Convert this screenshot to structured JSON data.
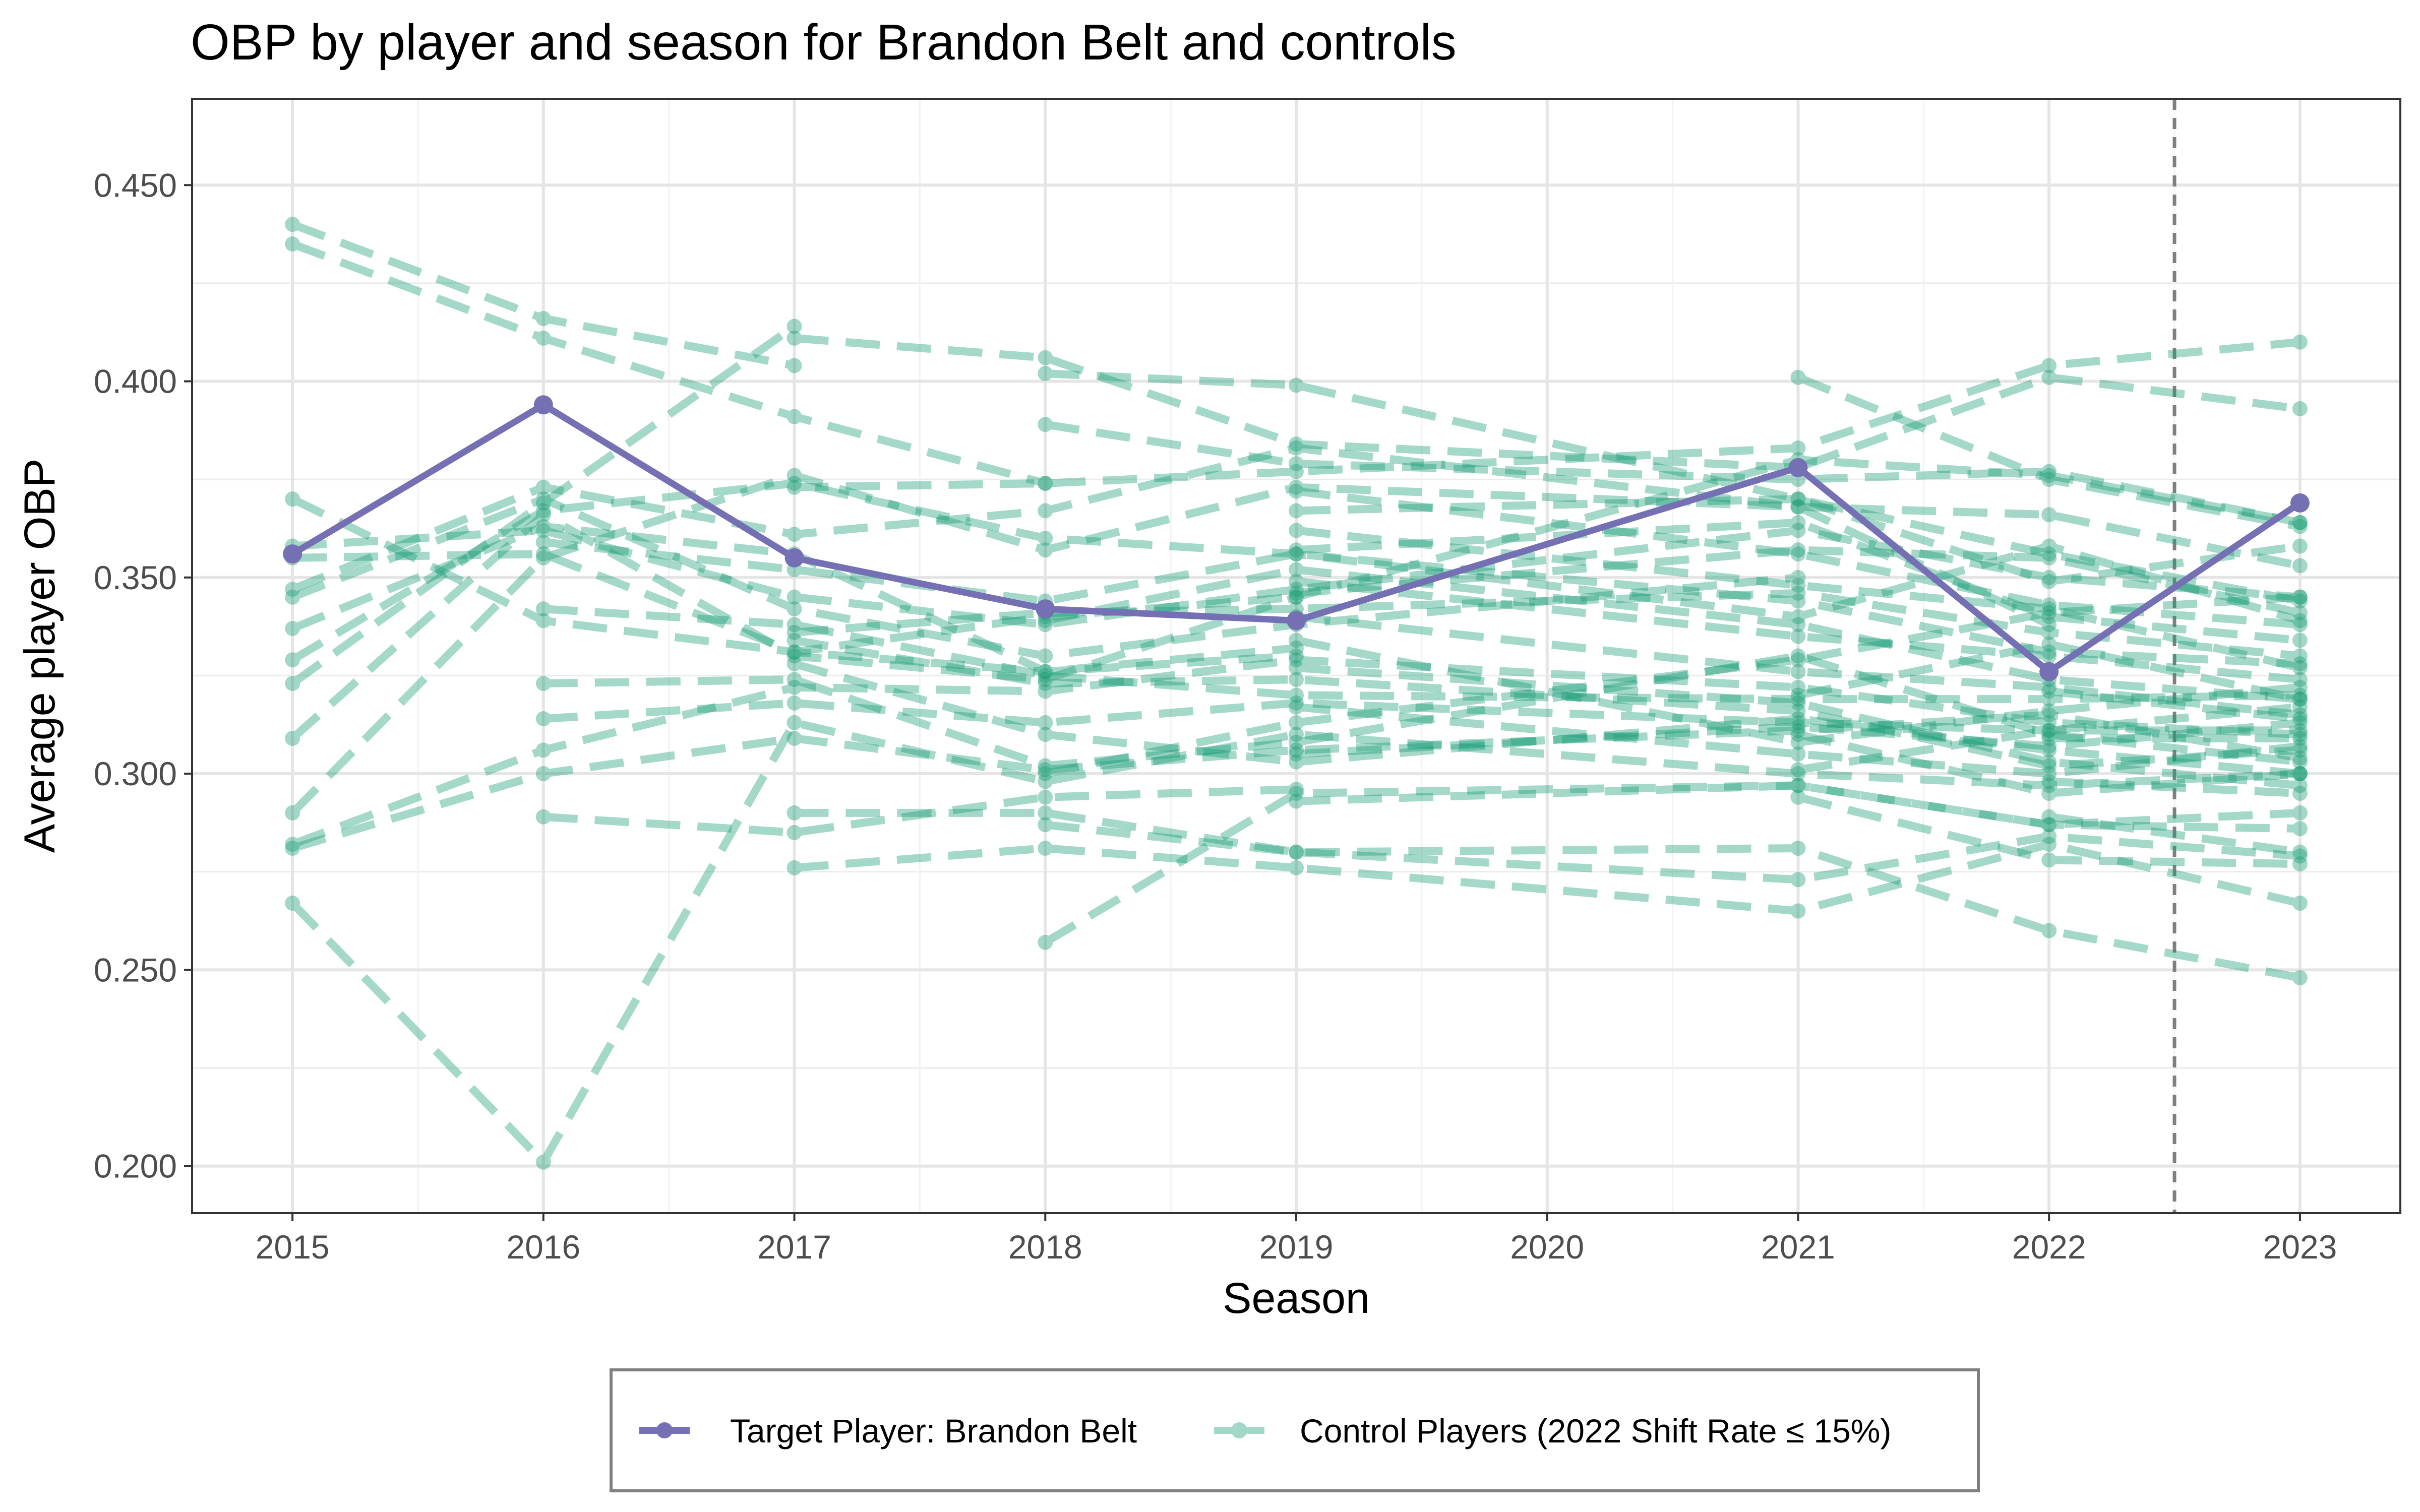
{
  "chart_data": {
    "type": "line",
    "title": "OBP by player and season for Brandon Belt and controls",
    "xlabel": "Season",
    "ylabel": "Average player OBP",
    "x_ticks": [
      "2015",
      "2016",
      "2017",
      "2018",
      "2019",
      "2020",
      "2021",
      "2022",
      "2023"
    ],
    "y_ticks": [
      "0.200",
      "0.250",
      "0.300",
      "0.350",
      "0.400",
      "0.450"
    ],
    "xlim": [
      2014.6,
      2023.4
    ],
    "ylim": [
      0.188,
      0.472
    ],
    "grid": true,
    "reference_line": {
      "x": 2022.5,
      "style": "dashed",
      "color": "#7f7f7f"
    },
    "legend_position": "bottom",
    "colors": {
      "target": "#7570b3",
      "control": "#1b9e77"
    },
    "series": [
      {
        "name": "Target Player: Brandon Belt",
        "role": "target",
        "points": [
          [
            2015,
            0.356
          ],
          [
            2016,
            0.394
          ],
          [
            2017,
            0.355
          ],
          [
            2018,
            0.342
          ],
          [
            2019,
            0.339
          ],
          [
            2021,
            0.378
          ],
          [
            2022,
            0.326
          ],
          [
            2023,
            0.369
          ]
        ]
      }
    ],
    "control_legend_label": "Control Players (2022 Shift Rate ≤ 15%)",
    "control_series": [
      [
        [
          2015,
          0.44
        ],
        [
          2016,
          0.416
        ],
        [
          2017,
          0.404
        ]
      ],
      [
        [
          2015,
          0.435
        ],
        [
          2016,
          0.411
        ],
        [
          2017,
          0.391
        ],
        [
          2018,
          0.374
        ]
      ],
      [
        [
          2015,
          0.37
        ],
        [
          2016,
          0.339
        ],
        [
          2017,
          0.331
        ],
        [
          2018,
          0.326
        ],
        [
          2019,
          0.33
        ]
      ],
      [
        [
          2015,
          0.358
        ],
        [
          2016,
          0.362
        ],
        [
          2017,
          0.345
        ],
        [
          2018,
          0.338
        ],
        [
          2019,
          0.347
        ],
        [
          2021,
          0.362
        ],
        [
          2022,
          0.35
        ],
        [
          2023,
          0.345
        ]
      ],
      [
        [
          2015,
          0.355
        ],
        [
          2016,
          0.356
        ],
        [
          2017,
          0.331
        ],
        [
          2018,
          0.34
        ],
        [
          2019,
          0.345
        ]
      ],
      [
        [
          2015,
          0.347
        ],
        [
          2016,
          0.373
        ],
        [
          2017,
          0.361
        ],
        [
          2018,
          0.367
        ],
        [
          2019,
          0.383
        ],
        [
          2021,
          0.368
        ],
        [
          2022,
          0.338
        ]
      ],
      [
        [
          2015,
          0.345
        ],
        [
          2016,
          0.37
        ],
        [
          2017,
          0.342
        ],
        [
          2018,
          0.33
        ],
        [
          2019,
          0.338
        ],
        [
          2021,
          0.35
        ]
      ],
      [
        [
          2015,
          0.337
        ],
        [
          2016,
          0.363
        ],
        [
          2017,
          0.356
        ],
        [
          2018,
          0.326
        ],
        [
          2019,
          0.332
        ]
      ],
      [
        [
          2015,
          0.329
        ],
        [
          2016,
          0.367
        ],
        [
          2017,
          0.374
        ],
        [
          2018,
          0.36
        ],
        [
          2019,
          0.356
        ],
        [
          2021,
          0.34
        ],
        [
          2022,
          0.358
        ],
        [
          2023,
          0.339
        ]
      ],
      [
        [
          2015,
          0.323
        ],
        [
          2016,
          0.369
        ],
        [
          2017,
          0.414
        ]
      ],
      [
        [
          2015,
          0.309
        ],
        [
          2016,
          0.366
        ],
        [
          2017,
          0.33
        ],
        [
          2018,
          0.324
        ],
        [
          2019,
          0.345
        ],
        [
          2021,
          0.38
        ],
        [
          2022,
          0.376
        ],
        [
          2023,
          0.364
        ]
      ],
      [
        [
          2015,
          0.29
        ],
        [
          2016,
          0.355
        ],
        [
          2017,
          0.376
        ],
        [
          2018,
          0.357
        ],
        [
          2019,
          0.373
        ],
        [
          2021,
          0.368
        ],
        [
          2022,
          0.366
        ],
        [
          2023,
          0.353
        ]
      ],
      [
        [
          2015,
          0.282
        ],
        [
          2016,
          0.306
        ],
        [
          2017,
          0.322
        ],
        [
          2018,
          0.321
        ],
        [
          2019,
          0.329
        ],
        [
          2021,
          0.322
        ],
        [
          2022,
          0.313
        ],
        [
          2023,
          0.31
        ]
      ],
      [
        [
          2015,
          0.281
        ],
        [
          2016,
          0.3
        ],
        [
          2017,
          0.309
        ],
        [
          2018,
          0.301
        ],
        [
          2019,
          0.306
        ],
        [
          2021,
          0.311
        ],
        [
          2022,
          0.315
        ],
        [
          2023,
          0.304
        ]
      ],
      [
        [
          2015,
          0.267
        ],
        [
          2016,
          0.201
        ],
        [
          2017,
          0.313
        ],
        [
          2018,
          0.298
        ],
        [
          2019,
          0.31
        ],
        [
          2021,
          0.3
        ],
        [
          2022,
          0.297
        ],
        [
          2023,
          0.3
        ]
      ],
      [
        [
          2016,
          0.323
        ],
        [
          2017,
          0.324
        ],
        [
          2018,
          0.302
        ],
        [
          2019,
          0.308
        ],
        [
          2021,
          0.33
        ],
        [
          2022,
          0.31
        ],
        [
          2023,
          0.303
        ]
      ],
      [
        [
          2016,
          0.314
        ],
        [
          2017,
          0.318
        ],
        [
          2018,
          0.313
        ],
        [
          2019,
          0.318
        ],
        [
          2021,
          0.313
        ],
        [
          2022,
          0.311
        ],
        [
          2023,
          0.311
        ]
      ],
      [
        [
          2016,
          0.289
        ],
        [
          2017,
          0.285
        ],
        [
          2018,
          0.294
        ],
        [
          2019,
          0.296
        ]
      ],
      [
        [
          2016,
          0.342
        ],
        [
          2017,
          0.338
        ],
        [
          2018,
          0.325
        ],
        [
          2019,
          0.32
        ],
        [
          2021,
          0.319
        ],
        [
          2022,
          0.319
        ],
        [
          2023,
          0.32
        ]
      ],
      [
        [
          2016,
          0.359
        ],
        [
          2017,
          0.352
        ],
        [
          2018,
          0.344
        ],
        [
          2019,
          0.356
        ],
        [
          2021,
          0.344
        ],
        [
          2022,
          0.331
        ],
        [
          2023,
          0.328
        ]
      ],
      [
        [
          2017,
          0.411
        ],
        [
          2018,
          0.406
        ],
        [
          2019,
          0.384
        ],
        [
          2021,
          0.378
        ],
        [
          2022,
          0.401
        ],
        [
          2023,
          0.393
        ]
      ],
      [
        [
          2017,
          0.373
        ],
        [
          2018,
          0.374
        ],
        [
          2019,
          0.377
        ],
        [
          2021,
          0.383
        ],
        [
          2022,
          0.404
        ],
        [
          2023,
          0.41
        ]
      ],
      [
        [
          2017,
          0.29
        ],
        [
          2018,
          0.29
        ],
        [
          2019,
          0.28
        ],
        [
          2021,
          0.281
        ],
        [
          2022,
          0.26
        ],
        [
          2023,
          0.248
        ]
      ],
      [
        [
          2017,
          0.276
        ],
        [
          2018,
          0.281
        ],
        [
          2019,
          0.276
        ],
        [
          2021,
          0.265
        ],
        [
          2022,
          0.282
        ],
        [
          2023,
          0.267
        ]
      ],
      [
        [
          2017,
          0.336
        ],
        [
          2018,
          0.341
        ],
        [
          2019,
          0.342
        ],
        [
          2021,
          0.346
        ],
        [
          2022,
          0.336
        ],
        [
          2023,
          0.33
        ]
      ],
      [
        [
          2017,
          0.334
        ],
        [
          2018,
          0.323
        ],
        [
          2019,
          0.324
        ],
        [
          2021,
          0.316
        ],
        [
          2022,
          0.302
        ],
        [
          2023,
          0.306
        ]
      ],
      [
        [
          2017,
          0.328
        ],
        [
          2018,
          0.31
        ],
        [
          2019,
          0.303
        ],
        [
          2021,
          0.314
        ],
        [
          2022,
          0.306
        ],
        [
          2023,
          0.3
        ]
      ],
      [
        [
          2018,
          0.402
        ],
        [
          2019,
          0.399
        ],
        [
          2021,
          0.37
        ],
        [
          2022,
          0.349
        ],
        [
          2023,
          0.358
        ]
      ],
      [
        [
          2018,
          0.389
        ],
        [
          2019,
          0.379
        ],
        [
          2021,
          0.375
        ],
        [
          2022,
          0.377
        ],
        [
          2023,
          0.364
        ]
      ],
      [
        [
          2018,
          0.257
        ],
        [
          2019,
          0.295
        ],
        [
          2021,
          0.297
        ],
        [
          2022,
          0.287
        ],
        [
          2023,
          0.286
        ]
      ],
      [
        [
          2018,
          0.287
        ],
        [
          2019,
          0.28
        ],
        [
          2021,
          0.273
        ],
        [
          2022,
          0.284
        ],
        [
          2023,
          0.279
        ]
      ],
      [
        [
          2018,
          0.3
        ],
        [
          2019,
          0.313
        ],
        [
          2021,
          0.329
        ],
        [
          2022,
          0.341
        ],
        [
          2023,
          0.345
        ]
      ],
      [
        [
          2018,
          0.339
        ],
        [
          2019,
          0.352
        ],
        [
          2021,
          0.338
        ],
        [
          2022,
          0.324
        ],
        [
          2023,
          0.319
        ]
      ],
      [
        [
          2019,
          0.372
        ],
        [
          2021,
          0.356
        ],
        [
          2022,
          0.343
        ],
        [
          2023,
          0.338
        ]
      ],
      [
        [
          2019,
          0.367
        ],
        [
          2021,
          0.37
        ],
        [
          2022,
          0.356
        ],
        [
          2023,
          0.344
        ]
      ],
      [
        [
          2019,
          0.362
        ],
        [
          2021,
          0.348
        ],
        [
          2022,
          0.342
        ],
        [
          2023,
          0.327
        ]
      ],
      [
        [
          2019,
          0.349
        ],
        [
          2021,
          0.335
        ],
        [
          2022,
          0.33
        ],
        [
          2023,
          0.324
        ]
      ],
      [
        [
          2019,
          0.34
        ],
        [
          2021,
          0.326
        ],
        [
          2022,
          0.322
        ],
        [
          2023,
          0.315
        ]
      ],
      [
        [
          2019,
          0.334
        ],
        [
          2021,
          0.308
        ],
        [
          2022,
          0.316
        ],
        [
          2023,
          0.322
        ]
      ],
      [
        [
          2019,
          0.327
        ],
        [
          2021,
          0.318
        ],
        [
          2022,
          0.303
        ],
        [
          2023,
          0.297
        ]
      ],
      [
        [
          2019,
          0.317
        ],
        [
          2021,
          0.305
        ],
        [
          2022,
          0.3
        ],
        [
          2023,
          0.307
        ]
      ],
      [
        [
          2019,
          0.305
        ],
        [
          2021,
          0.312
        ],
        [
          2022,
          0.307
        ],
        [
          2023,
          0.313
        ]
      ],
      [
        [
          2019,
          0.293
        ],
        [
          2021,
          0.297
        ],
        [
          2022,
          0.287
        ],
        [
          2023,
          0.29
        ]
      ],
      [
        [
          2019,
          0.357
        ],
        [
          2021,
          0.364
        ],
        [
          2022,
          0.34
        ],
        [
          2023,
          0.334
        ]
      ],
      [
        [
          2019,
          0.346
        ],
        [
          2021,
          0.357
        ],
        [
          2022,
          0.355
        ],
        [
          2023,
          0.341
        ]
      ],
      [
        [
          2021,
          0.401
        ],
        [
          2022,
          0.375
        ],
        [
          2023,
          0.363
        ]
      ],
      [
        [
          2021,
          0.294
        ],
        [
          2022,
          0.278
        ],
        [
          2023,
          0.277
        ]
      ],
      [
        [
          2021,
          0.31
        ],
        [
          2022,
          0.295
        ],
        [
          2023,
          0.3
        ]
      ],
      [
        [
          2021,
          0.32
        ],
        [
          2022,
          0.333
        ],
        [
          2023,
          0.319
        ]
      ],
      [
        [
          2021,
          0.301
        ],
        [
          2022,
          0.311
        ],
        [
          2023,
          0.317
        ]
      ],
      [
        [
          2022,
          0.321
        ],
        [
          2023,
          0.314
        ]
      ],
      [
        [
          2022,
          0.309
        ],
        [
          2023,
          0.309
        ]
      ],
      [
        [
          2022,
          0.298
        ],
        [
          2023,
          0.295
        ]
      ],
      [
        [
          2022,
          0.289
        ],
        [
          2023,
          0.28
        ]
      ]
    ]
  },
  "legend": {
    "target_label": "Target Player: Brandon Belt",
    "control_label": "Control Players (2022 Shift Rate ≤ 15%)"
  }
}
